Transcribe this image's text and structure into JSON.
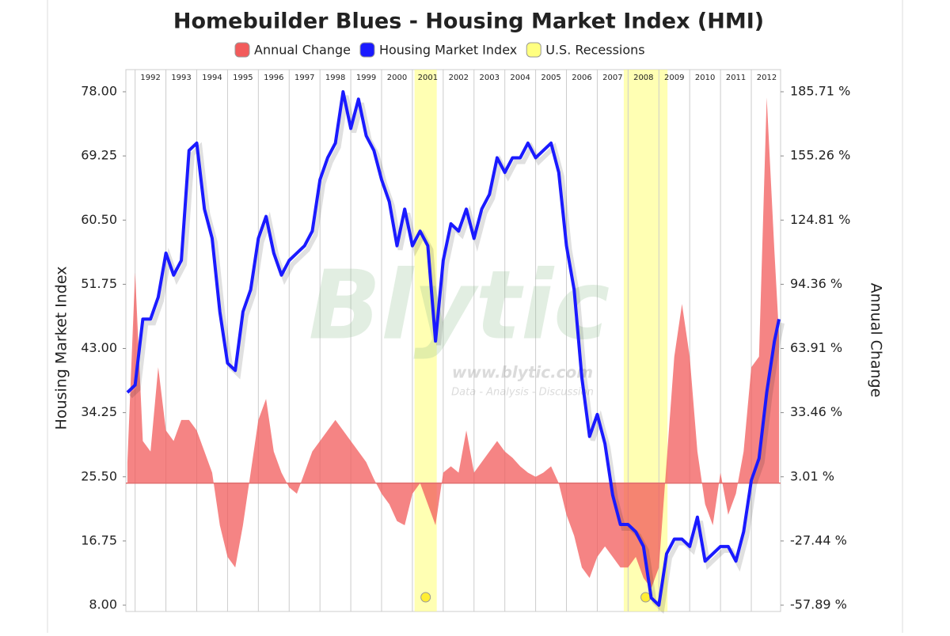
{
  "chart_data": {
    "type": "line-area",
    "title": "Homebuilder Blues - Housing Market Index (HMI)",
    "ylabel": "Housing Market Index",
    "y2label": "Annual Change",
    "watermark": {
      "logo": "Blytic",
      "url": "www.blytic.com",
      "tagline": "Data - Analysis - Discussion"
    },
    "xlim": [
      1991.7,
      2012.95
    ],
    "xticks": [
      1992,
      1993,
      1994,
      1995,
      1996,
      1997,
      1998,
      1999,
      2000,
      2001,
      2002,
      2003,
      2004,
      2005,
      2006,
      2007,
      2008,
      2009,
      2010,
      2011,
      2012
    ],
    "xgrid": true,
    "ylim": [
      8,
      78
    ],
    "yticks": [
      {
        "value": 8,
        "label": "8.00"
      },
      {
        "value": 16.75,
        "label": "16.75"
      },
      {
        "value": 25.5,
        "label": "25.50"
      },
      {
        "value": 34.25,
        "label": "34.25"
      },
      {
        "value": 43,
        "label": "43.00"
      },
      {
        "value": 51.75,
        "label": "51.75"
      },
      {
        "value": 60.5,
        "label": "60.50"
      },
      {
        "value": 69.25,
        "label": "69.25"
      },
      {
        "value": 78,
        "label": "78.00"
      }
    ],
    "y2lim": [
      -57.89,
      185.71
    ],
    "y2ticks": [
      {
        "value": -57.89,
        "label": "-57.89 %"
      },
      {
        "value": -27.44,
        "label": "-27.44 %"
      },
      {
        "value": 3.01,
        "label": "3.01 %"
      },
      {
        "value": 33.46,
        "label": "33.46 %"
      },
      {
        "value": 63.91,
        "label": "63.91 %"
      },
      {
        "value": 94.36,
        "label": "94.36 %"
      },
      {
        "value": 124.81,
        "label": "124.81 %"
      },
      {
        "value": 155.26,
        "label": "155.26 %"
      },
      {
        "value": 185.71,
        "label": "185.71 %"
      }
    ],
    "x": [
      1991.75,
      1992,
      1992.25,
      1992.5,
      1992.75,
      1993,
      1993.25,
      1993.5,
      1993.75,
      1994,
      1994.25,
      1994.5,
      1994.75,
      1995,
      1995.25,
      1995.5,
      1995.75,
      1996,
      1996.25,
      1996.5,
      1996.75,
      1997,
      1997.25,
      1997.5,
      1997.75,
      1998,
      1998.25,
      1998.5,
      1998.75,
      1999,
      1999.25,
      1999.5,
      1999.75,
      2000,
      2000.25,
      2000.5,
      2000.75,
      2001,
      2001.25,
      2001.5,
      2001.75,
      2002,
      2002.25,
      2002.5,
      2002.75,
      2003,
      2003.25,
      2003.5,
      2003.75,
      2004,
      2004.25,
      2004.5,
      2004.75,
      2005,
      2005.25,
      2005.5,
      2005.75,
      2006,
      2006.25,
      2006.5,
      2006.75,
      2007,
      2007.25,
      2007.5,
      2007.75,
      2008,
      2008.25,
      2008.5,
      2008.75,
      2009,
      2009.25,
      2009.5,
      2009.75,
      2010,
      2010.25,
      2010.5,
      2010.75,
      2011,
      2011.25,
      2011.5,
      2011.75,
      2012,
      2012.25,
      2012.5,
      2012.75,
      2012.9
    ],
    "series": [
      {
        "name": "Annual Change",
        "color": "#f25b5b",
        "axis": "y2",
        "kind": "area",
        "values": [
          10,
          100,
          20,
          15,
          55,
          25,
          20,
          30,
          30,
          25,
          15,
          5,
          -20,
          -35,
          -40,
          -20,
          5,
          30,
          40,
          15,
          5,
          -2,
          -5,
          5,
          15,
          20,
          25,
          30,
          25,
          20,
          15,
          10,
          2,
          -5,
          -10,
          -18,
          -20,
          -5,
          0,
          -10,
          -20,
          5,
          8,
          5,
          25,
          5,
          10,
          15,
          20,
          15,
          12,
          8,
          5,
          3,
          5,
          8,
          0,
          -15,
          -25,
          -40,
          -45,
          -35,
          -30,
          -35,
          -40,
          -40,
          -35,
          -45,
          -50,
          -40,
          10,
          60,
          85,
          60,
          15,
          -10,
          -20,
          5,
          -15,
          -5,
          15,
          55,
          60,
          183,
          110,
          70
        ]
      },
      {
        "name": "Housing Market Index",
        "color": "#1a1aff",
        "kind": "line",
        "values": [
          37,
          38,
          47,
          47,
          50,
          56,
          53,
          55,
          70,
          71,
          62,
          58,
          48,
          41,
          40,
          48,
          51,
          58,
          61,
          56,
          53,
          55,
          56,
          57,
          59,
          66,
          69,
          71,
          78,
          73,
          77,
          72,
          70,
          66,
          63,
          57,
          62,
          57,
          59,
          57,
          44,
          55,
          60,
          59,
          62,
          58,
          62,
          64,
          69,
          67,
          69,
          69,
          71,
          69,
          70,
          71,
          67,
          57,
          51,
          39,
          31,
          34,
          30,
          23,
          19,
          19,
          18,
          16,
          9,
          8,
          15,
          17,
          17,
          16,
          20,
          14,
          15,
          16,
          16,
          14,
          18,
          25,
          28,
          37,
          44,
          47
        ]
      }
    ],
    "recessions": {
      "name": "U.S. Recessions",
      "color": "#ffff80",
      "periods": [
        [
          2001.07,
          2001.79
        ],
        [
          2007.86,
          2009.28
        ]
      ]
    }
  }
}
